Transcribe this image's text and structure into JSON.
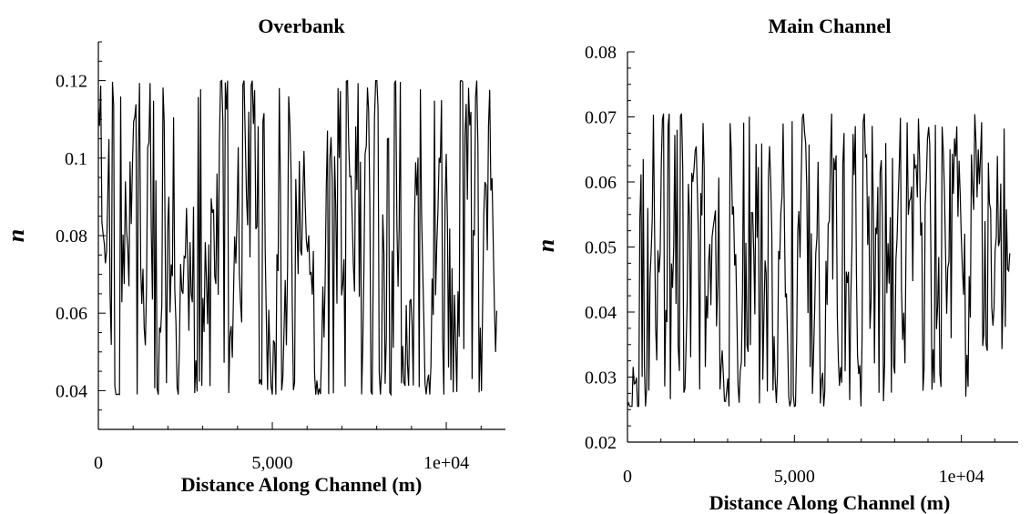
{
  "charts": [
    {
      "type": "line",
      "title": "Overbank",
      "xlabel": "Distance Along Channel (m)",
      "ylabel": "n",
      "xlim": [
        0,
        11700
      ],
      "ylim": [
        0.03,
        0.13
      ],
      "xticks": [
        0,
        5000,
        10000
      ],
      "xtick_labels": [
        "0",
        "5,000",
        "1e+04"
      ],
      "yticks": [
        0.04,
        0.06,
        0.08,
        0.1,
        0.12
      ],
      "ytick_labels": [
        "0.04",
        "0.06",
        "0.08",
        "0.1",
        "0.12"
      ],
      "yminor_step": 0.005,
      "x_start": 0,
      "x_end": 11450,
      "n_points": 340,
      "seed": 7,
      "value_min": 0.039,
      "value_max": 0.12,
      "color": "#000000"
    },
    {
      "type": "line",
      "title": "Main Channel",
      "xlabel": "Distance Along Channel (m)",
      "ylabel": "n",
      "xlim": [
        0,
        11700
      ],
      "ylim": [
        0.02,
        0.08
      ],
      "xticks": [
        0,
        5000,
        10000
      ],
      "xtick_labels": [
        "0",
        "5,000",
        "1e+04"
      ],
      "yticks": [
        0.02,
        0.03,
        0.04,
        0.05,
        0.06,
        0.07,
        0.08
      ],
      "ytick_labels": [
        "0.02",
        "0.03",
        "0.04",
        "0.05",
        "0.06",
        "0.07",
        "0.08"
      ],
      "yminor_step": 0.0025,
      "x_start": 0,
      "x_end": 11450,
      "n_points": 340,
      "seed": 19,
      "value_min": 0.0255,
      "value_max": 0.0705,
      "color": "#000000"
    }
  ]
}
